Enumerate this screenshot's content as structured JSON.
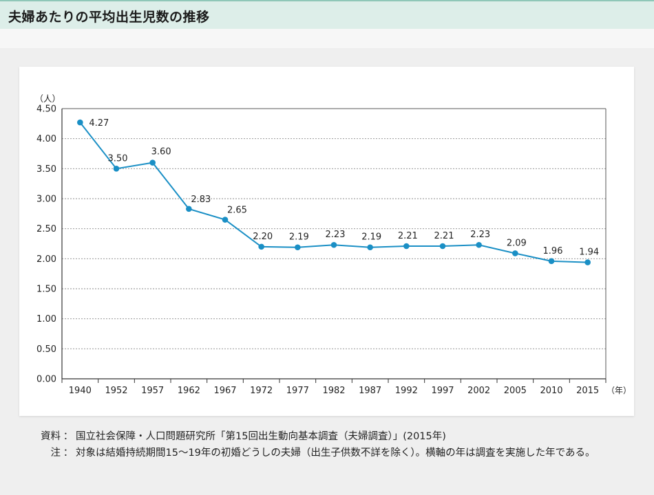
{
  "header": {
    "title": "夫婦あたりの平均出生児数の推移"
  },
  "chart_data": {
    "type": "line",
    "y_unit": "（人）",
    "x_unit": "（年）",
    "categories": [
      "1940",
      "1952",
      "1957",
      "1962",
      "1967",
      "1972",
      "1977",
      "1982",
      "1987",
      "1992",
      "1997",
      "2002",
      "2005",
      "2010",
      "2015"
    ],
    "values": [
      4.27,
      3.5,
      3.6,
      2.83,
      2.65,
      2.2,
      2.19,
      2.23,
      2.19,
      2.21,
      2.21,
      2.23,
      2.09,
      1.96,
      1.94
    ],
    "data_labels": [
      "4.27",
      "3.50",
      "3.60",
      "2.83",
      "2.65",
      "2.20",
      "2.19",
      "2.23",
      "2.19",
      "2.21",
      "2.21",
      "2.23",
      "2.09",
      "1.96",
      "1.94"
    ],
    "y_ticks": [
      "0.00",
      "0.50",
      "1.00",
      "1.50",
      "2.00",
      "2.50",
      "3.00",
      "3.50",
      "4.00",
      "4.50"
    ],
    "ylim": [
      0,
      4.5
    ],
    "grid": true,
    "line_color": "#1a8fc5"
  },
  "notes": {
    "source_key": "資料",
    "source_text": "国立社会保障・人口問題研究所「第15回出生動向基本調査（夫婦調査）」(2015年)",
    "note_key": "注",
    "note_text": "対象は結婚持続期間15〜19年の初婚どうしの夫婦（出生子供数不詳を除く）。横軸の年は調査を実施した年である。"
  }
}
